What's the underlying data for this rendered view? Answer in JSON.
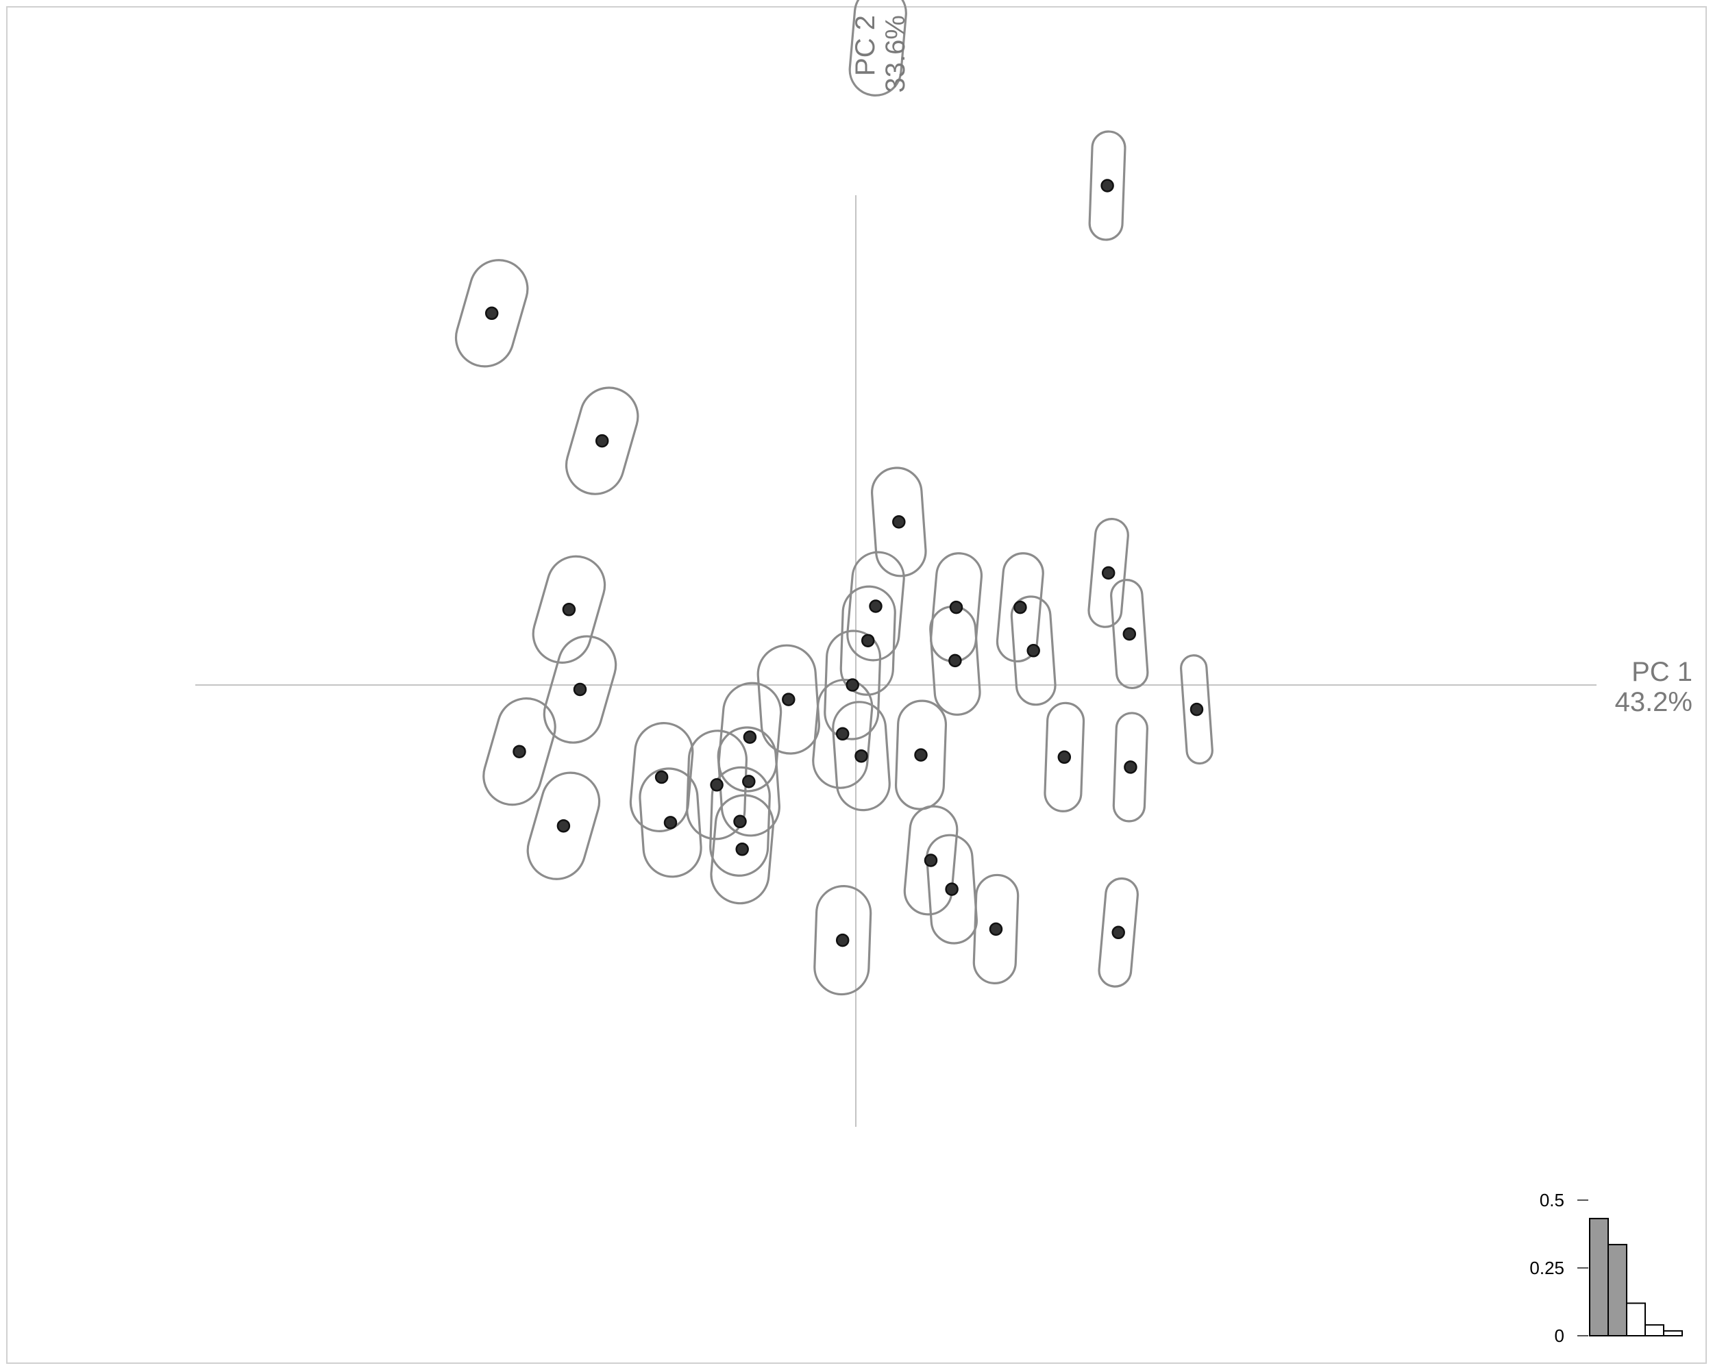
{
  "chart_data": {
    "type": "scatter",
    "axes": {
      "x": {
        "name": "PC 1",
        "percent": "43.2%"
      },
      "y": {
        "name": "PC 2",
        "percent": "33.6%"
      }
    },
    "grid": false,
    "points": [
      {
        "x": -3.3,
        "y": 3.35
      },
      {
        "x": -2.3,
        "y": 2.2
      },
      {
        "x": -2.6,
        "y": 0.68
      },
      {
        "x": -2.5,
        "y": -0.04
      },
      {
        "x": -3.05,
        "y": -0.6
      },
      {
        "x": -2.65,
        "y": -1.27
      },
      {
        "x": -1.76,
        "y": -0.83
      },
      {
        "x": -1.68,
        "y": -1.24
      },
      {
        "x": -1.26,
        "y": -0.9
      },
      {
        "x": -0.96,
        "y": -0.47
      },
      {
        "x": -0.97,
        "y": -0.87
      },
      {
        "x": -1.05,
        "y": -1.23
      },
      {
        "x": -1.03,
        "y": -1.48
      },
      {
        "x": -0.61,
        "y": -0.13
      },
      {
        "x": -0.03,
        "y": 0.0
      },
      {
        "x": -0.12,
        "y": -0.44
      },
      {
        "x": 0.05,
        "y": -0.64
      },
      {
        "x": 0.11,
        "y": 0.4
      },
      {
        "x": 0.18,
        "y": 0.71
      },
      {
        "x": 0.39,
        "y": 1.47
      },
      {
        "x": 0.59,
        "y": -0.63
      },
      {
        "x": 0.68,
        "y": -1.58
      },
      {
        "x": 0.87,
        "y": -1.84
      },
      {
        "x": -0.12,
        "y": -2.3
      },
      {
        "x": 0.91,
        "y": 0.7
      },
      {
        "x": 0.9,
        "y": 0.22
      },
      {
        "x": 1.27,
        "y": -2.2
      },
      {
        "x": 1.49,
        "y": 0.7
      },
      {
        "x": 1.61,
        "y": 0.31
      },
      {
        "x": 1.89,
        "y": -0.65
      },
      {
        "x": 2.29,
        "y": 1.01
      },
      {
        "x": 2.48,
        "y": 0.46
      },
      {
        "x": 2.49,
        "y": -0.74
      },
      {
        "x": 2.38,
        "y": -2.23
      },
      {
        "x": 3.09,
        "y": -0.22
      },
      {
        "x": 2.28,
        "y": 4.5
      },
      {
        "x": 0.2,
        "y": 5.8
      }
    ],
    "scree": {
      "ticks": [
        "0.5",
        "0.25",
        "0"
      ],
      "ylim": [
        0,
        0.5
      ],
      "values": [
        0.432,
        0.336,
        0.12,
        0.04,
        0.018
      ],
      "selected_count": 2
    }
  }
}
